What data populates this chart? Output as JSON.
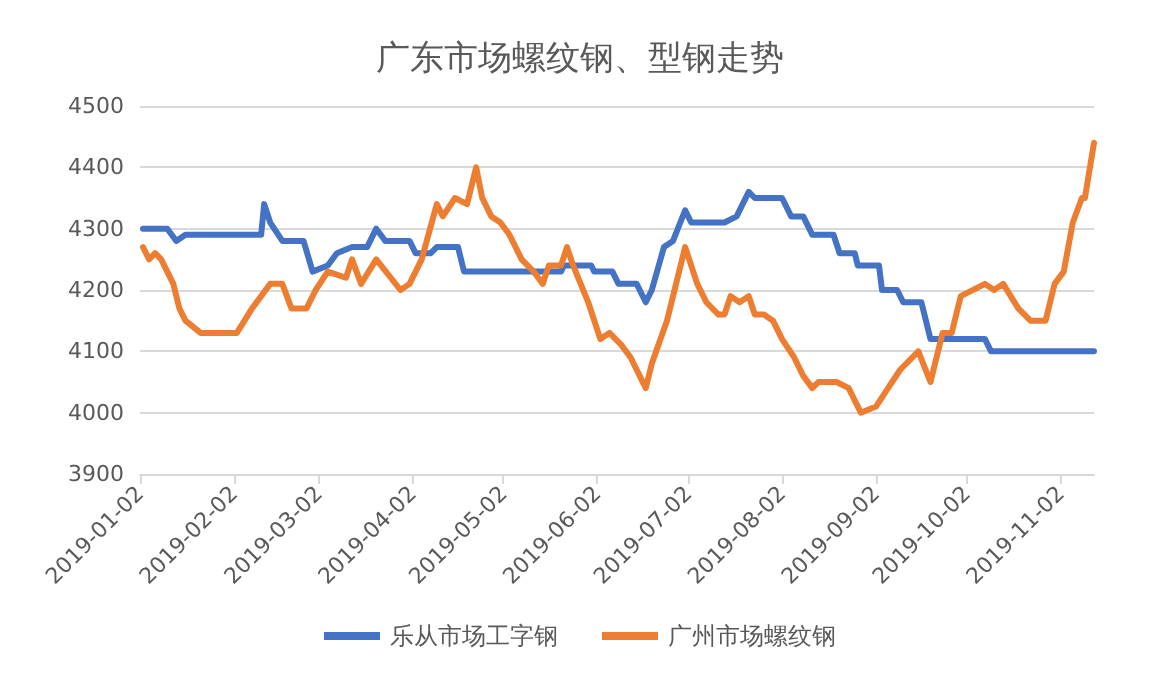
{
  "chart_data": {
    "type": "line",
    "title": "广东市场螺纹钢、型钢走势",
    "xlim": [
      "2019-01-02",
      "2019-11-13"
    ],
    "xticks": [
      "2019-01-02",
      "2019-02-02",
      "2019-03-02",
      "2019-04-02",
      "2019-05-02",
      "2019-06-02",
      "2019-07-02",
      "2019-08-02",
      "2019-09-02",
      "2019-10-02",
      "2019-11-02"
    ],
    "ylim": [
      3900,
      4500
    ],
    "yticks": [
      3900,
      4000,
      4100,
      4200,
      4300,
      4400,
      4500
    ],
    "grid": "y",
    "legend": "bottom",
    "marker": "none",
    "line_style": "solid",
    "series": [
      {
        "name": "乐从市场工字钢",
        "color": "#4472c4",
        "x": [
          "2019-01-03",
          "2019-01-11",
          "2019-01-14",
          "2019-01-17",
          "2019-02-11",
          "2019-02-12",
          "2019-02-14",
          "2019-02-18",
          "2019-02-25",
          "2019-02-28",
          "2019-03-05",
          "2019-03-08",
          "2019-03-13",
          "2019-03-18",
          "2019-03-21",
          "2019-03-24",
          "2019-04-01",
          "2019-04-03",
          "2019-04-08",
          "2019-04-10",
          "2019-04-17",
          "2019-04-19",
          "2019-05-21",
          "2019-05-22",
          "2019-05-31",
          "2019-06-01",
          "2019-06-07",
          "2019-06-09",
          "2019-06-15",
          "2019-06-18",
          "2019-06-20",
          "2019-06-24",
          "2019-06-27",
          "2019-07-01",
          "2019-07-03",
          "2019-07-14",
          "2019-07-18",
          "2019-07-22",
          "2019-07-24",
          "2019-08-02",
          "2019-08-05",
          "2019-08-09",
          "2019-08-12",
          "2019-08-19",
          "2019-08-21",
          "2019-08-26",
          "2019-08-27",
          "2019-09-03",
          "2019-09-04",
          "2019-09-09",
          "2019-09-11",
          "2019-09-17",
          "2019-09-20",
          "2019-10-08",
          "2019-10-10",
          "2019-11-13"
        ],
        "values": [
          4300,
          4300,
          4280,
          4290,
          4290,
          4340,
          4310,
          4280,
          4280,
          4230,
          4240,
          4260,
          4270,
          4270,
          4300,
          4280,
          4280,
          4260,
          4260,
          4270,
          4270,
          4230,
          4230,
          4240,
          4240,
          4230,
          4230,
          4210,
          4210,
          4180,
          4200,
          4270,
          4280,
          4330,
          4310,
          4310,
          4320,
          4360,
          4350,
          4350,
          4320,
          4320,
          4290,
          4290,
          4260,
          4260,
          4240,
          4240,
          4200,
          4200,
          4180,
          4180,
          4120,
          4120,
          4100,
          4100
        ]
      },
      {
        "name": "广州市场螺纹钢",
        "color": "#ed7d31",
        "x": [
          "2019-01-03",
          "2019-01-05",
          "2019-01-07",
          "2019-01-09",
          "2019-01-13",
          "2019-01-15",
          "2019-01-17",
          "2019-01-22",
          "2019-02-03",
          "2019-02-08",
          "2019-02-14",
          "2019-02-18",
          "2019-02-21",
          "2019-02-26",
          "2019-03-01",
          "2019-03-05",
          "2019-03-11",
          "2019-03-13",
          "2019-03-16",
          "2019-03-21",
          "2019-03-29",
          "2019-04-01",
          "2019-04-05",
          "2019-04-10",
          "2019-04-12",
          "2019-04-16",
          "2019-04-20",
          "2019-04-23",
          "2019-04-25",
          "2019-04-28",
          "2019-05-01",
          "2019-05-04",
          "2019-05-08",
          "2019-05-12",
          "2019-05-15",
          "2019-05-17",
          "2019-05-21",
          "2019-05-23",
          "2019-05-25",
          "2019-05-30",
          "2019-06-03",
          "2019-06-06",
          "2019-06-10",
          "2019-06-13",
          "2019-06-18",
          "2019-06-20",
          "2019-06-25",
          "2019-07-01",
          "2019-07-05",
          "2019-07-08",
          "2019-07-12",
          "2019-07-14",
          "2019-07-16",
          "2019-07-19",
          "2019-07-22",
          "2019-07-24",
          "2019-07-27",
          "2019-07-30",
          "2019-08-02",
          "2019-08-06",
          "2019-08-09",
          "2019-08-12",
          "2019-08-14",
          "2019-08-20",
          "2019-08-24",
          "2019-08-28",
          "2019-09-02",
          "2019-09-06",
          "2019-09-10",
          "2019-09-16",
          "2019-09-20",
          "2019-09-24",
          "2019-09-27",
          "2019-09-30",
          "2019-10-08",
          "2019-10-11",
          "2019-10-14",
          "2019-10-19",
          "2019-10-23",
          "2019-10-28",
          "2019-10-31",
          "2019-11-03",
          "2019-11-06",
          "2019-11-09",
          "2019-11-10",
          "2019-11-13"
        ],
        "values": [
          4270,
          4250,
          4260,
          4250,
          4210,
          4170,
          4150,
          4130,
          4130,
          4170,
          4210,
          4210,
          4170,
          4170,
          4200,
          4230,
          4220,
          4250,
          4210,
          4250,
          4200,
          4210,
          4250,
          4340,
          4320,
          4350,
          4340,
          4400,
          4350,
          4320,
          4310,
          4290,
          4250,
          4230,
          4210,
          4240,
          4240,
          4270,
          4240,
          4180,
          4120,
          4130,
          4110,
          4090,
          4040,
          4080,
          4150,
          4270,
          4210,
          4180,
          4160,
          4160,
          4190,
          4180,
          4190,
          4160,
          4160,
          4150,
          4120,
          4090,
          4060,
          4040,
          4050,
          4050,
          4040,
          4000,
          4010,
          4040,
          4070,
          4100,
          4050,
          4130,
          4130,
          4190,
          4210,
          4200,
          4210,
          4170,
          4150,
          4150,
          4210,
          4230,
          4310,
          4350,
          4350,
          4440
        ]
      }
    ]
  }
}
